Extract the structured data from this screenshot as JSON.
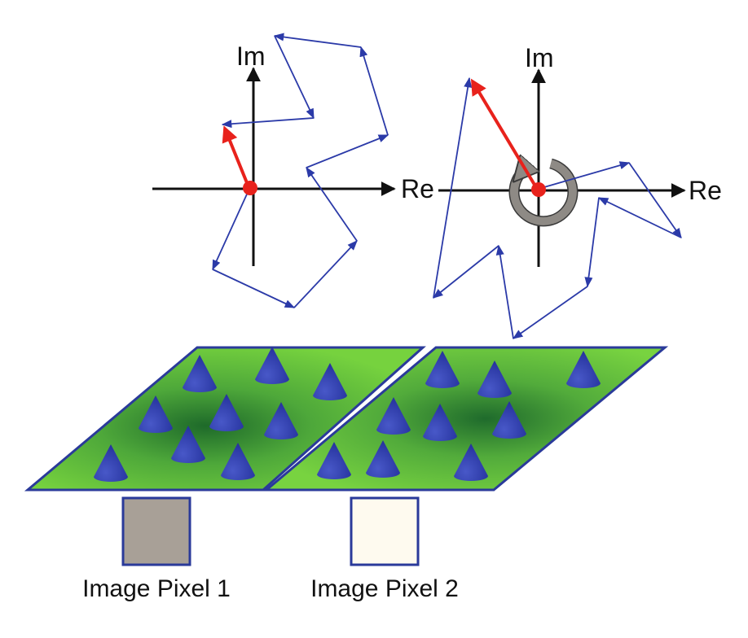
{
  "diagram": {
    "plot1": {
      "axis_real_label": "Re",
      "axis_imag_label": "Im"
    },
    "plot2": {
      "axis_real_label": "Re",
      "axis_imag_label": "Im"
    },
    "pixel1": {
      "caption": "Image Pixel 1",
      "color": "#a8a097"
    },
    "pixel2": {
      "caption": "Image Pixel 2",
      "color": "#fefaef"
    },
    "colors": {
      "phasor_chain": "#2b3aa8",
      "resultant": "#e8221c",
      "origin_dot": "#e8221c",
      "axes": "#111111",
      "surface": "#6ecf3a",
      "surface_edge": "#2a3a9a",
      "scatterer": "#2b3ab0",
      "rotation_arrow": "#8e8a85"
    },
    "icons": {
      "rotation": "circular-arrow-icon",
      "scatterer": "cone-icon"
    }
  }
}
